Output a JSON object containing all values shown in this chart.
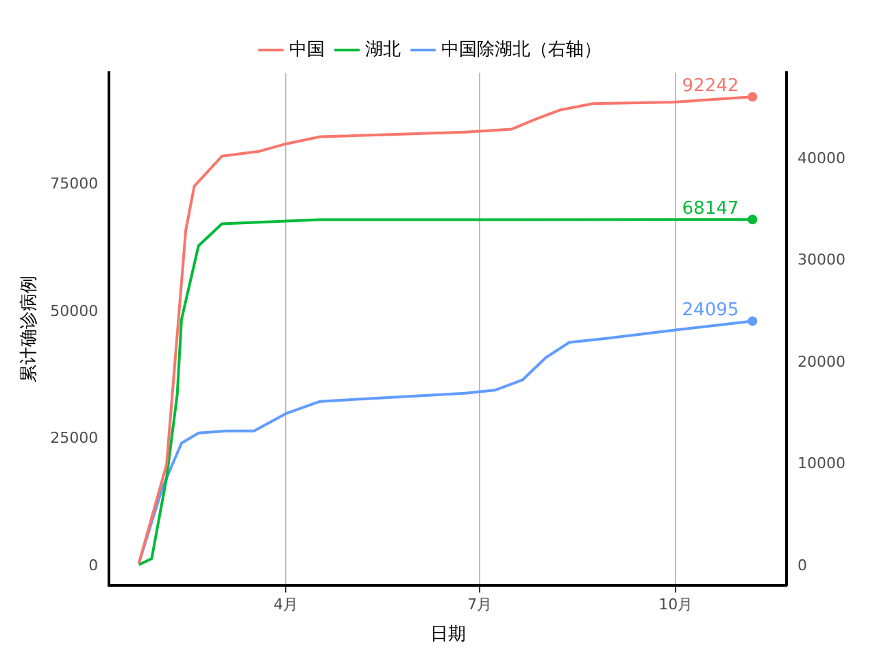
{
  "chart_data": {
    "type": "line",
    "xlabel": "日期",
    "ylabel": "累计确诊病例",
    "legend": "top",
    "grid": "x",
    "xlim": [
      "--01-09",
      "--11-22"
    ],
    "xticks": [
      {
        "value": "--04-01",
        "label": "4月"
      },
      {
        "value": "--07-01",
        "label": "7月"
      },
      {
        "value": "--10-01",
        "label": "10月"
      }
    ],
    "ylim": [
      -3800,
      97000
    ],
    "yticks": [
      0,
      25000,
      50000,
      75000
    ],
    "y2lim": [
      -1900,
      48500
    ],
    "y2ticks": [
      0,
      10000,
      20000,
      30000,
      40000
    ],
    "series": [
      {
        "name": "中国",
        "color": "#f8766d",
        "x": [
          "--01-23",
          "--02-05",
          "--02-14",
          "--02-18",
          "--03-02",
          "--03-19",
          "--04-01",
          "--04-17",
          "--06-24",
          "--07-16",
          "--07-28",
          "--08-08",
          "--08-23",
          "--09-30",
          "--11-06"
        ],
        "values": [
          600,
          20000,
          66000,
          74700,
          80600,
          81500,
          83000,
          84400,
          85300,
          85900,
          88000,
          89700,
          90900,
          91200,
          92242
        ],
        "value_labels": [
          null,
          null,
          null,
          null,
          null,
          null,
          null,
          null,
          null,
          null,
          null,
          null,
          null,
          null,
          "92242"
        ]
      },
      {
        "name": "湖北",
        "color": "#00ba38",
        "x": [
          "--01-23",
          "--01-29",
          "--02-05",
          "--02-10",
          "--02-12",
          "--02-20",
          "--03-02",
          "--04-17",
          "--11-06"
        ],
        "values": [
          300,
          1500,
          17400,
          33800,
          48500,
          63000,
          67300,
          68100,
          68147
        ],
        "value_labels": [
          null,
          null,
          null,
          null,
          null,
          null,
          null,
          null,
          "68147"
        ]
      },
      {
        "name": "中国除湖北（右轴）",
        "color": "#619cff",
        "axis": "y2",
        "x": [
          "--01-23",
          "--02-03",
          "--02-12",
          "--02-20",
          "--03-04",
          "--03-17",
          "--04-01",
          "--04-17",
          "--06-24",
          "--07-08",
          "--07-21",
          "--08-01",
          "--08-12",
          "--08-30",
          "--09-30",
          "--11-06"
        ],
        "values": [
          300,
          7700,
          12100,
          13100,
          13300,
          13300,
          15000,
          16200,
          17000,
          17300,
          18300,
          20500,
          22000,
          22400,
          23200,
          24095
        ],
        "value_labels": [
          null,
          null,
          null,
          null,
          null,
          null,
          null,
          null,
          null,
          null,
          null,
          null,
          null,
          null,
          null,
          "24095"
        ]
      }
    ]
  }
}
